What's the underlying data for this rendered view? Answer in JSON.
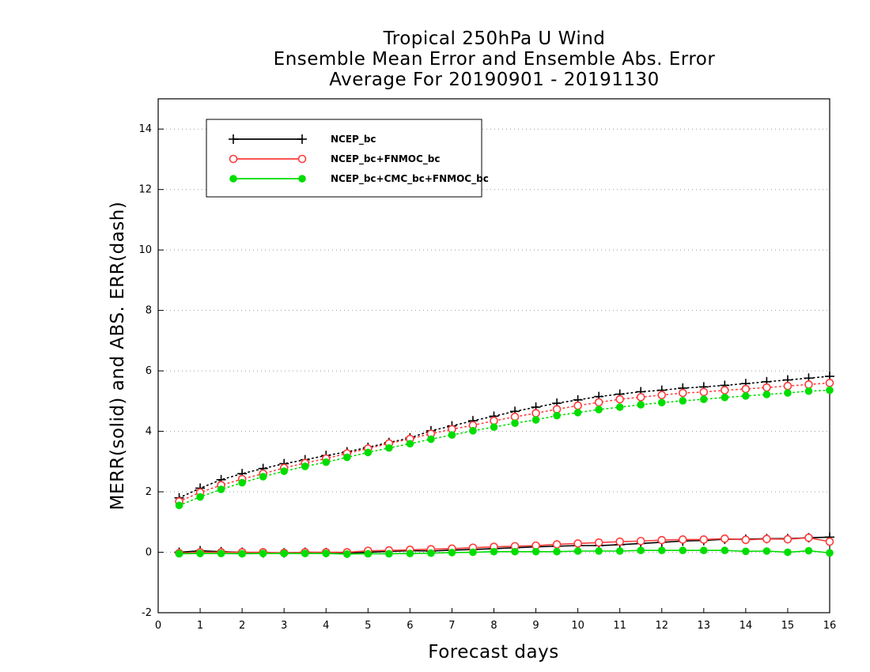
{
  "chart_data": {
    "type": "line",
    "title_lines": [
      "Tropical 250hPa U Wind",
      "Ensemble Mean Error and Ensemble Abs. Error",
      "Average For 20190901 - 20191130"
    ],
    "xlabel": "Forecast days",
    "ylabel": "MERR(solid) and ABS. ERR(dash)",
    "xlim": [
      0,
      16
    ],
    "ylim": [
      -2,
      15
    ],
    "x_ticks": [
      0,
      1,
      2,
      3,
      4,
      5,
      6,
      7,
      8,
      9,
      10,
      11,
      12,
      13,
      14,
      15,
      16
    ],
    "y_ticks": [
      -2,
      0,
      2,
      4,
      6,
      8,
      10,
      12,
      14
    ],
    "grid": "horizontal dotted",
    "legend_position": "top-left",
    "x": [
      0.5,
      1,
      1.5,
      2,
      2.5,
      3,
      3.5,
      4,
      4.5,
      5,
      5.5,
      6,
      6.5,
      7,
      7.5,
      8,
      8.5,
      9,
      9.5,
      10,
      10.5,
      11,
      11.5,
      12,
      12.5,
      13,
      13.5,
      14,
      14.5,
      15,
      15.5,
      16
    ],
    "series": [
      {
        "name": "NCEP_bc",
        "color": "#000000",
        "marker": "plus",
        "abs_err": [
          1.8,
          2.12,
          2.4,
          2.6,
          2.77,
          2.93,
          3.06,
          3.2,
          3.32,
          3.47,
          3.63,
          3.78,
          4.02,
          4.18,
          4.35,
          4.5,
          4.66,
          4.8,
          4.93,
          5.04,
          5.15,
          5.23,
          5.31,
          5.36,
          5.43,
          5.47,
          5.52,
          5.58,
          5.64,
          5.7,
          5.76,
          5.82
        ],
        "mean_err": [
          0.0,
          0.05,
          0.02,
          0.0,
          -0.02,
          -0.02,
          0.0,
          -0.01,
          -0.03,
          0.0,
          0.03,
          0.05,
          0.04,
          0.07,
          0.09,
          0.12,
          0.15,
          0.18,
          0.2,
          0.22,
          0.22,
          0.25,
          0.29,
          0.33,
          0.37,
          0.39,
          0.43,
          0.43,
          0.45,
          0.45,
          0.48,
          0.5
        ]
      },
      {
        "name": "NCEP_bc+FNMOC_bc",
        "color": "#ff3c3c",
        "marker": "open-circle",
        "abs_err": [
          1.68,
          1.98,
          2.22,
          2.42,
          2.6,
          2.79,
          2.95,
          3.1,
          3.27,
          3.43,
          3.6,
          3.75,
          3.92,
          4.07,
          4.2,
          4.35,
          4.48,
          4.6,
          4.73,
          4.85,
          4.96,
          5.06,
          5.13,
          5.2,
          5.27,
          5.3,
          5.36,
          5.4,
          5.45,
          5.5,
          5.55,
          5.6
        ],
        "mean_err": [
          -0.03,
          0.0,
          0.0,
          0.0,
          0.0,
          -0.02,
          0.0,
          0.0,
          0.0,
          0.05,
          0.06,
          0.08,
          0.1,
          0.12,
          0.15,
          0.18,
          0.2,
          0.22,
          0.26,
          0.29,
          0.32,
          0.35,
          0.37,
          0.4,
          0.42,
          0.42,
          0.45,
          0.41,
          0.44,
          0.43,
          0.48,
          0.35
        ]
      },
      {
        "name": "NCEP_bc+CMC_bc+FNMOC_bc",
        "color": "#00dd00",
        "marker": "filled-circle",
        "abs_err": [
          1.55,
          1.83,
          2.08,
          2.3,
          2.5,
          2.68,
          2.84,
          2.98,
          3.14,
          3.3,
          3.45,
          3.59,
          3.74,
          3.88,
          4.02,
          4.14,
          4.27,
          4.38,
          4.52,
          4.62,
          4.72,
          4.8,
          4.88,
          4.95,
          5.01,
          5.06,
          5.12,
          5.17,
          5.22,
          5.27,
          5.33,
          5.36
        ],
        "mean_err": [
          -0.05,
          -0.04,
          -0.04,
          -0.05,
          -0.04,
          -0.04,
          -0.04,
          -0.04,
          -0.06,
          -0.05,
          -0.05,
          -0.04,
          -0.03,
          -0.01,
          0.0,
          0.02,
          0.02,
          0.02,
          0.02,
          0.04,
          0.04,
          0.04,
          0.06,
          0.06,
          0.06,
          0.06,
          0.06,
          0.03,
          0.04,
          0.0,
          0.05,
          -0.02
        ]
      }
    ]
  }
}
